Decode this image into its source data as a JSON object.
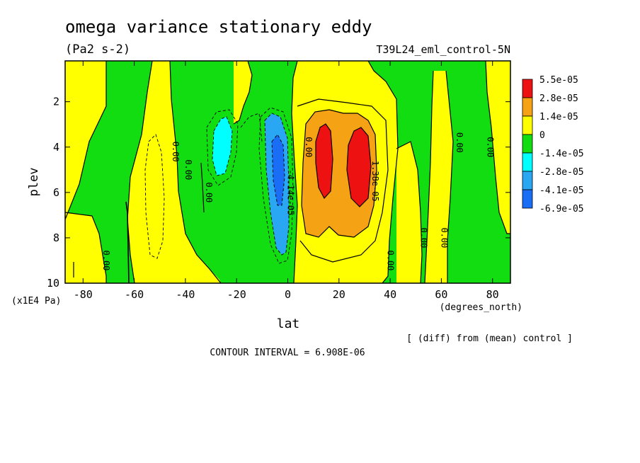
{
  "chart_data": {
    "type": "heatmap",
    "title": "omega variance stationary eddy",
    "units": "(Pa2 s-2)",
    "run_label": "T39L24_eml_control-5N",
    "xlabel": "lat",
    "x_units": "(degrees_north)",
    "ylabel": "plev",
    "y_units": "(x1E4 Pa)",
    "x_ticks": [
      "-80",
      "-60",
      "-40",
      "-20",
      "0",
      "20",
      "40",
      "60",
      "80"
    ],
    "y_ticks": [
      "2",
      "4",
      "6",
      "8",
      "10"
    ],
    "xlim": [
      -87,
      87
    ],
    "ylim": [
      10,
      0.2
    ],
    "contour_interval": "CONTOUR INTERVAL = 6.908E-06",
    "diff_note": "[ (diff) from (mean) control ]",
    "legend_labels": [
      "5.5e-05",
      "2.8e-05",
      "1.4e-05",
      "0",
      "-1.4e-05",
      "-2.8e-05",
      "-4.1e-05",
      "-6.9e-05"
    ],
    "colors": {
      "red": "#ee1111",
      "orange": "#f5a214",
      "yellow": "#ffff00",
      "green": "#11dd11",
      "cyan": "#00ffff",
      "light_blue": "#2aa7f2",
      "blue": "#1a6ef5"
    },
    "contour_labels": [
      {
        "text": "0.00",
        "lat": -72,
        "plev": 9.0
      },
      {
        "text": "0.00",
        "lat": -45,
        "plev": 4.2
      },
      {
        "text": "0.00",
        "lat": -40,
        "plev": 5.0
      },
      {
        "text": "0.00",
        "lat": -32,
        "plev": 6.0
      },
      {
        "text": "0.00",
        "lat": 7,
        "plev": 4.0
      },
      {
        "text": "-4.14e-05",
        "lat": 0,
        "plev": 6.0
      },
      {
        "text": "1.38e-05",
        "lat": 33,
        "plev": 5.5
      },
      {
        "text": "0.00",
        "lat": 39,
        "plev": 9.0
      },
      {
        "text": "0.00",
        "lat": 52,
        "plev": 8.0
      },
      {
        "text": "0.00",
        "lat": 60,
        "plev": 8.0
      },
      {
        "text": "0.00",
        "lat": 66,
        "plev": 3.8
      },
      {
        "text": "0.00",
        "lat": 78,
        "plev": 4.0
      }
    ]
  }
}
